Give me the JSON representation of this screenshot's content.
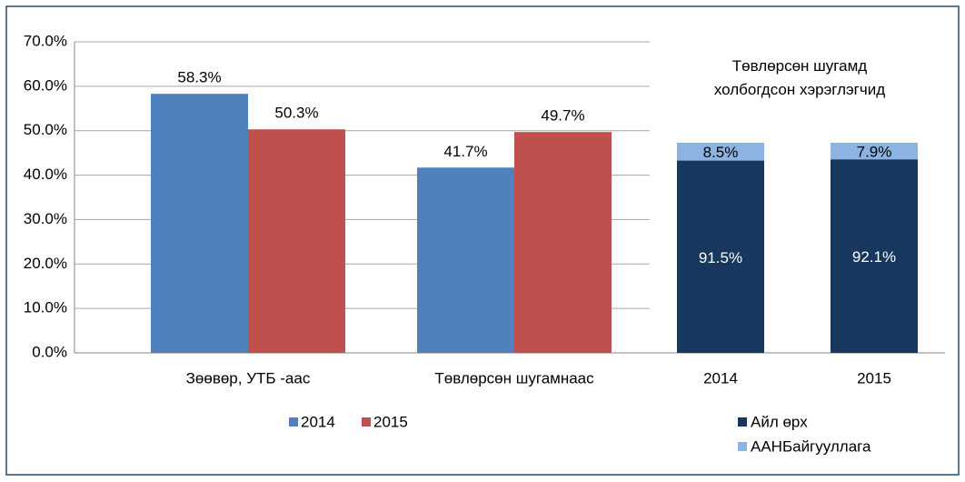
{
  "chart_data": [
    {
      "type": "bar",
      "categories": [
        "Зөөвөр, УТБ -аас",
        "Төвлөрсөн шугамнаас"
      ],
      "series": [
        {
          "name": "2014",
          "color": "#4f81bd",
          "values": [
            58.3,
            41.7
          ],
          "value_labels": [
            "58.3%",
            "41.7%"
          ]
        },
        {
          "name": "2015",
          "color": "#c0504d",
          "values": [
            50.3,
            49.7
          ],
          "value_labels": [
            "50.3%",
            "49.7%"
          ]
        }
      ],
      "ylim": [
        0,
        70
      ],
      "yticks": [
        {
          "value": 0,
          "label": "0.0%"
        },
        {
          "value": 10,
          "label": "10.0%"
        },
        {
          "value": 20,
          "label": "20.0%"
        },
        {
          "value": 30,
          "label": "30.0%"
        },
        {
          "value": 40,
          "label": "40.0%"
        },
        {
          "value": 50,
          "label": "50.0%"
        },
        {
          "value": 60,
          "label": "60.0%"
        },
        {
          "value": 70,
          "label": "70.0%"
        }
      ],
      "grid": true,
      "legend": "bottom"
    },
    {
      "type": "stacked_bar",
      "title": "Төвлөрсөн  шугамд холбогдсон хэрэглэгчид",
      "categories": [
        "2014",
        "2015"
      ],
      "series": [
        {
          "name": "Айл өрх",
          "color": "#17375e",
          "values": [
            91.5,
            92.1
          ],
          "value_labels": [
            "91.5%",
            "92.1%"
          ]
        },
        {
          "name": "ААНБайгууллага",
          "color": "#8db3e2",
          "values": [
            8.5,
            7.9
          ],
          "value_labels": [
            "8.5%",
            "7.9%"
          ]
        }
      ],
      "ylim": [
        0,
        148
      ],
      "legend": "bottom"
    }
  ]
}
